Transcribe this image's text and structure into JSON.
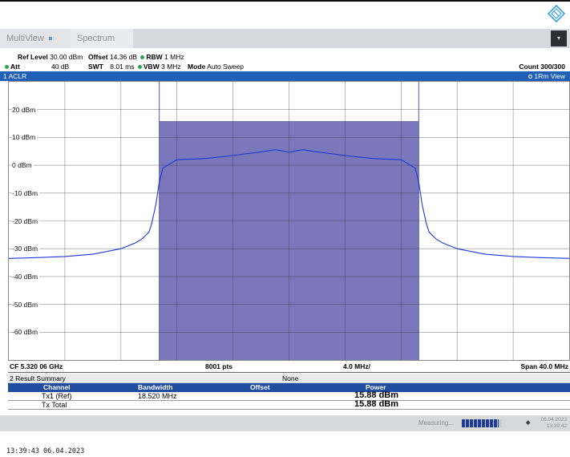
{
  "colors": {
    "accent_blue": "#1f5fb8",
    "channel_fill": "#7a78bb",
    "trace": "#1a38d6",
    "status_green": "#2aa64a"
  },
  "tabs": [
    {
      "label": "MultiView"
    },
    {
      "label": "Spectrum"
    }
  ],
  "params": {
    "ref_level_label": "Ref Level",
    "ref_level_value": "30.00 dBm",
    "offset_label": "Offset",
    "offset_value": "14.36 dB",
    "rbw_label": "RBW",
    "rbw_value": "1 MHz",
    "att_label": "Att",
    "att_value": "40 dB",
    "swt_label": "SWT",
    "swt_value": "8.01 ms",
    "vbw_label": "VBW",
    "vbw_value": "3 MHz",
    "mode_label": "Mode",
    "mode_value": "Auto Sweep",
    "count": "Count 300/300"
  },
  "window": {
    "title": "1 ACLR",
    "view": "1Rm View"
  },
  "chart_data": {
    "type": "line",
    "xlabel": "",
    "ylabel": "",
    "x_center_ghz": 5.32006,
    "x_span_mhz": 40.0,
    "ylim": [
      -70,
      30
    ],
    "y_ticks": [
      "20 dBm",
      "10 dBm",
      "0 dBm",
      "-10 dBm",
      "-20 dBm",
      "-30 dBm",
      "-40 dBm",
      "-50 dBm",
      "-60 dBm"
    ],
    "y_tick_values": [
      20,
      10,
      0,
      -10,
      -20,
      -30,
      -40,
      -50,
      -60
    ],
    "channel_band_mhz": [
      -9.26,
      9.26
    ],
    "channel_power_dbm": 15.88,
    "series": [
      {
        "x_mhz": [
          -20,
          -18,
          -16,
          -14,
          -12,
          -11,
          -10.5,
          -10,
          -9.8,
          -9.5,
          -9.26,
          -9,
          -8,
          -6,
          -4,
          -2,
          -1,
          -0.5,
          0,
          0.5,
          1,
          2,
          4,
          6,
          8,
          9,
          9.26,
          9.5,
          9.8,
          10,
          10.5,
          11,
          12,
          14,
          16,
          18,
          20
        ],
        "y_dbm": [
          -33.5,
          -33.2,
          -32.8,
          -32,
          -30,
          -28,
          -26.5,
          -24,
          -21,
          -14,
          -6,
          -1,
          2,
          2.4,
          3.5,
          4.8,
          5.6,
          5.2,
          4.6,
          5.2,
          5.6,
          4.8,
          3.5,
          2.4,
          2,
          -1,
          -6,
          -14,
          -21,
          -24,
          -26.5,
          -28,
          -30,
          -32,
          -32.8,
          -33.2,
          -33.5
        ]
      }
    ]
  },
  "footer": {
    "cf": "CF 5.320 06 GHz",
    "pts": "8001 pts",
    "div": "4.0 MHz/",
    "span": "Span 40.0 MHz"
  },
  "results": {
    "title": "2 Result Summary",
    "mode": "None",
    "columns": [
      "Channel",
      "Bandwidth",
      "Offset",
      "Power"
    ],
    "rows": [
      {
        "channel": "Tx1 (Ref)",
        "bandwidth": "18.520 MHz",
        "offset": "",
        "power": "15.88 dBm"
      },
      {
        "channel": "Tx Total",
        "bandwidth": "",
        "offset": "",
        "power": "15.88 dBm"
      }
    ]
  },
  "status": {
    "measuring": "Measuring...",
    "progress": 0.92,
    "date": "06.04.2023",
    "time": "13:39:42"
  },
  "timestamp": "13:39:43  06.04.2023"
}
